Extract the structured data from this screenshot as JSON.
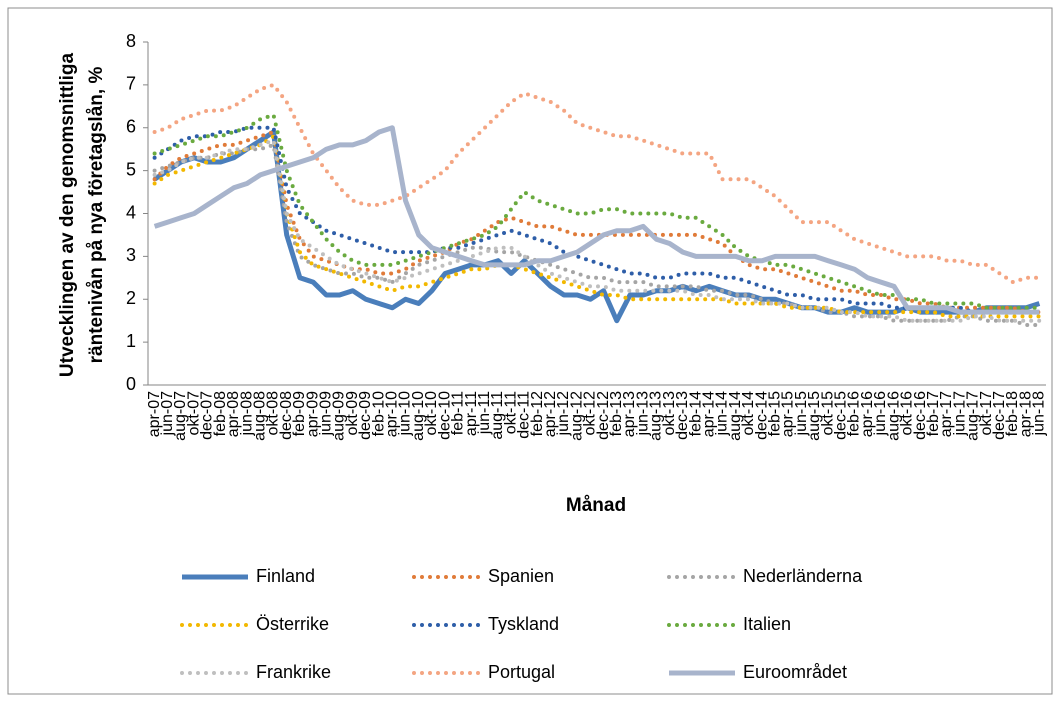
{
  "chart_data": {
    "type": "line",
    "y_label": [
      "Utvecklingen av den genomsnittliga",
      "räntenivån på nya företagslån, %"
    ],
    "x_label": "Månad",
    "categories": [
      "apr-07",
      "jun-07",
      "aug-07",
      "okt-07",
      "dec-07",
      "feb-08",
      "apr-08",
      "jun-08",
      "aug-08",
      "okt-08",
      "dec-08",
      "feb-09",
      "apr-09",
      "jun-09",
      "aug-09",
      "okt-09",
      "dec-09",
      "feb-10",
      "apr-10",
      "jun-10",
      "aug-10",
      "okt-10",
      "dec-10",
      "feb-11",
      "apr-11",
      "jun-11",
      "aug-11",
      "okt-11",
      "dec-11",
      "feb-12",
      "apr-12",
      "jun-12",
      "aug-12",
      "okt-12",
      "dec-12",
      "feb-13",
      "apr-13",
      "jun-13",
      "aug-13",
      "okt-13",
      "dec-13",
      "feb-14",
      "apr-14",
      "jun-14",
      "aug-14",
      "okt-14",
      "dec-14",
      "feb-15",
      "apr-15",
      "jun-15",
      "aug-15",
      "okt-15",
      "dec-15",
      "feb-16",
      "apr-16",
      "jun-16",
      "aug-16",
      "okt-16",
      "dec-16",
      "feb-17",
      "apr-17",
      "jun-17",
      "aug-17",
      "okt-17",
      "dec-17",
      "feb-18",
      "apr-18",
      "jun-18"
    ],
    "ylim": [
      0,
      8
    ],
    "yticks": [
      0,
      1,
      2,
      3,
      4,
      5,
      6,
      7,
      8
    ],
    "grid": false,
    "legend": "bottom",
    "series": [
      {
        "name": "Finland",
        "color": "#4a7ebb",
        "style": "solid",
        "values": [
          4.8,
          5.0,
          5.2,
          5.3,
          5.2,
          5.2,
          5.3,
          5.5,
          5.7,
          5.9,
          3.5,
          2.5,
          2.4,
          2.1,
          2.1,
          2.2,
          2.0,
          1.9,
          1.8,
          2.0,
          1.9,
          2.2,
          2.6,
          2.7,
          2.8,
          2.8,
          2.9,
          2.6,
          2.9,
          2.6,
          2.3,
          2.1,
          2.1,
          2.0,
          2.2,
          1.5,
          2.1,
          2.1,
          2.2,
          2.2,
          2.3,
          2.2,
          2.3,
          2.2,
          2.1,
          2.1,
          2.0,
          2.0,
          1.9,
          1.8,
          1.8,
          1.7,
          1.7,
          1.8,
          1.7,
          1.7,
          1.7,
          1.8,
          1.7,
          1.7,
          1.7,
          1.7,
          1.7,
          1.8,
          1.8,
          1.8,
          1.8,
          1.9
        ]
      },
      {
        "name": "Spanien",
        "color": "#e07b39",
        "style": "dotted",
        "values": [
          4.8,
          5.1,
          5.3,
          5.4,
          5.5,
          5.6,
          5.6,
          5.7,
          5.8,
          5.9,
          4.2,
          3.4,
          3.0,
          2.9,
          2.8,
          2.7,
          2.7,
          2.6,
          2.6,
          2.7,
          2.9,
          3.0,
          3.1,
          3.3,
          3.4,
          3.6,
          3.8,
          3.9,
          3.8,
          3.7,
          3.7,
          3.6,
          3.5,
          3.5,
          3.5,
          3.5,
          3.5,
          3.5,
          3.5,
          3.5,
          3.5,
          3.5,
          3.4,
          3.3,
          3.0,
          2.8,
          2.7,
          2.7,
          2.6,
          2.5,
          2.4,
          2.3,
          2.2,
          2.2,
          2.1,
          2.1,
          2.0,
          2.0,
          1.9,
          1.9,
          1.8,
          1.8,
          1.8,
          1.8,
          1.8,
          1.8,
          1.7,
          1.7
        ]
      },
      {
        "name": "Nederländerna",
        "color": "#a5a5a5",
        "style": "dotted",
        "values": [
          5.0,
          5.1,
          5.2,
          5.3,
          5.3,
          5.4,
          5.4,
          5.5,
          5.5,
          5.6,
          3.8,
          3.0,
          2.8,
          2.7,
          2.6,
          2.6,
          2.5,
          2.5,
          2.4,
          2.6,
          2.8,
          2.9,
          3.0,
          3.1,
          3.2,
          3.2,
          3.1,
          3.1,
          3.0,
          2.9,
          2.8,
          2.7,
          2.6,
          2.5,
          2.5,
          2.4,
          2.4,
          2.4,
          2.3,
          2.3,
          2.3,
          2.3,
          2.2,
          2.2,
          2.1,
          2.1,
          2.0,
          1.9,
          1.9,
          1.8,
          1.8,
          1.7,
          1.7,
          1.6,
          1.6,
          1.6,
          1.5,
          1.5,
          1.5,
          1.5,
          1.5,
          1.6,
          1.6,
          1.5,
          1.5,
          1.5,
          1.4,
          1.4
        ]
      },
      {
        "name": "Österrike",
        "color": "#f2b800",
        "style": "dotted",
        "values": [
          4.7,
          4.9,
          5.0,
          5.1,
          5.2,
          5.3,
          5.4,
          5.5,
          5.6,
          5.8,
          4.0,
          3.1,
          2.8,
          2.7,
          2.6,
          2.5,
          2.4,
          2.3,
          2.2,
          2.3,
          2.3,
          2.4,
          2.5,
          2.6,
          2.7,
          2.7,
          2.8,
          2.8,
          2.7,
          2.6,
          2.5,
          2.4,
          2.3,
          2.2,
          2.1,
          2.1,
          2.0,
          2.0,
          2.0,
          2.0,
          2.0,
          2.0,
          2.0,
          2.0,
          1.9,
          1.9,
          1.9,
          1.9,
          1.8,
          1.8,
          1.8,
          1.8,
          1.7,
          1.7,
          1.7,
          1.7,
          1.7,
          1.7,
          1.7,
          1.7,
          1.6,
          1.6,
          1.6,
          1.6,
          1.6,
          1.6,
          1.6,
          1.6
        ]
      },
      {
        "name": "Tyskland",
        "color": "#2e5ea8",
        "style": "dotted",
        "values": [
          5.3,
          5.5,
          5.7,
          5.8,
          5.8,
          5.9,
          5.9,
          6.0,
          6.0,
          6.0,
          4.6,
          4.0,
          3.8,
          3.6,
          3.5,
          3.4,
          3.3,
          3.2,
          3.1,
          3.1,
          3.1,
          3.1,
          3.2,
          3.2,
          3.3,
          3.4,
          3.5,
          3.6,
          3.5,
          3.4,
          3.3,
          3.1,
          3.0,
          2.9,
          2.8,
          2.7,
          2.6,
          2.6,
          2.5,
          2.5,
          2.6,
          2.6,
          2.6,
          2.5,
          2.5,
          2.4,
          2.3,
          2.2,
          2.1,
          2.1,
          2.0,
          2.0,
          2.0,
          1.9,
          1.9,
          1.9,
          1.8,
          1.8,
          1.8,
          1.8,
          1.8,
          1.8,
          1.7,
          1.7,
          1.7,
          1.7,
          1.7,
          1.7
        ]
      },
      {
        "name": "Italien",
        "color": "#6aaa3f",
        "style": "dotted",
        "values": [
          5.4,
          5.5,
          5.6,
          5.7,
          5.8,
          5.8,
          5.9,
          6.0,
          6.2,
          6.3,
          5.0,
          4.2,
          3.8,
          3.4,
          3.1,
          2.9,
          2.8,
          2.8,
          2.8,
          2.9,
          3.0,
          3.1,
          3.2,
          3.3,
          3.4,
          3.5,
          3.7,
          4.1,
          4.5,
          4.3,
          4.2,
          4.1,
          4.0,
          4.0,
          4.1,
          4.1,
          4.0,
          4.0,
          4.0,
          4.0,
          3.9,
          3.9,
          3.7,
          3.5,
          3.2,
          3.0,
          2.9,
          2.8,
          2.8,
          2.7,
          2.6,
          2.5,
          2.4,
          2.3,
          2.2,
          2.1,
          2.1,
          2.0,
          2.0,
          1.9,
          1.9,
          1.9,
          1.9,
          1.8,
          1.8,
          1.8,
          1.8,
          1.8
        ]
      },
      {
        "name": "Frankrike",
        "color": "#bfbfbf",
        "style": "dotted",
        "values": [
          4.9,
          5.0,
          5.2,
          5.3,
          5.3,
          5.4,
          5.5,
          5.5,
          5.6,
          5.7,
          4.0,
          3.4,
          3.2,
          3.0,
          2.8,
          2.7,
          2.6,
          2.5,
          2.4,
          2.5,
          2.6,
          2.7,
          2.8,
          2.9,
          3.0,
          3.1,
          3.2,
          3.2,
          3.0,
          2.8,
          2.6,
          2.5,
          2.4,
          2.3,
          2.3,
          2.2,
          2.2,
          2.2,
          2.2,
          2.2,
          2.2,
          2.1,
          2.1,
          2.0,
          2.0,
          2.0,
          1.9,
          1.9,
          1.9,
          1.8,
          1.8,
          1.8,
          1.7,
          1.7,
          1.6,
          1.6,
          1.6,
          1.5,
          1.5,
          1.5,
          1.5,
          1.5,
          1.6,
          1.6,
          1.5,
          1.5,
          1.5,
          1.5
        ]
      },
      {
        "name": "Portugal",
        "color": "#f4a582",
        "style": "dotted",
        "values": [
          5.9,
          6.0,
          6.2,
          6.3,
          6.4,
          6.4,
          6.5,
          6.7,
          6.9,
          7.0,
          6.6,
          6.0,
          5.4,
          5.0,
          4.6,
          4.3,
          4.2,
          4.2,
          4.3,
          4.4,
          4.6,
          4.8,
          5.0,
          5.4,
          5.7,
          6.0,
          6.3,
          6.6,
          6.8,
          6.7,
          6.6,
          6.4,
          6.1,
          6.0,
          5.9,
          5.8,
          5.8,
          5.7,
          5.6,
          5.5,
          5.4,
          5.4,
          5.4,
          4.8,
          4.8,
          4.8,
          4.6,
          4.4,
          4.1,
          3.8,
          3.8,
          3.8,
          3.6,
          3.4,
          3.3,
          3.2,
          3.1,
          3.0,
          3.0,
          3.0,
          2.9,
          2.9,
          2.8,
          2.8,
          2.6,
          2.4,
          2.5,
          2.5
        ]
      },
      {
        "name": "Euroområdet",
        "color": "#a8b4cc",
        "style": "solid",
        "values": [
          3.7,
          3.8,
          3.9,
          4.0,
          4.2,
          4.4,
          4.6,
          4.7,
          4.9,
          5.0,
          5.1,
          5.2,
          5.3,
          5.5,
          5.6,
          5.6,
          5.7,
          5.9,
          6.0,
          4.3,
          3.5,
          3.2,
          3.1,
          3.0,
          2.9,
          2.8,
          2.8,
          2.8,
          2.8,
          2.9,
          2.9,
          3.0,
          3.1,
          3.3,
          3.5,
          3.6,
          3.6,
          3.7,
          3.4,
          3.3,
          3.1,
          3.0,
          3.0,
          3.0,
          3.0,
          2.9,
          2.9,
          3.0,
          3.0,
          3.0,
          3.0,
          2.9,
          2.8,
          2.7,
          2.5,
          2.4,
          2.3,
          1.8,
          1.8,
          1.8,
          1.8,
          1.7,
          1.7,
          1.7,
          1.7,
          1.7,
          1.7,
          1.7
        ]
      }
    ]
  }
}
